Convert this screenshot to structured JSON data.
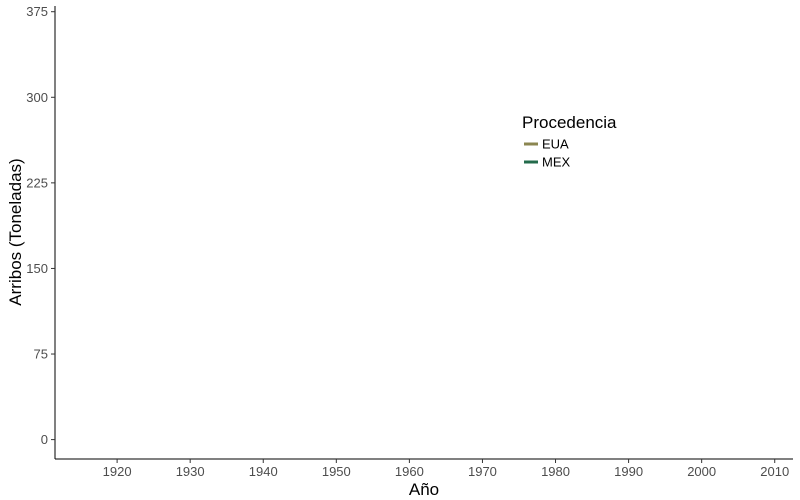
{
  "chart_data": {
    "type": "line",
    "title": "",
    "xlabel": "Año",
    "ylabel": "Arribos (Toneladas)",
    "x_ticks": [
      1920,
      1930,
      1940,
      1950,
      1960,
      1970,
      1980,
      1990,
      2000,
      2010
    ],
    "y_ticks": [
      0,
      75,
      150,
      225,
      300,
      375
    ],
    "xlim": [
      1911.5,
      2012.5
    ],
    "ylim": [
      -17,
      380
    ],
    "grid": false,
    "legend": {
      "title": "Procedencia",
      "placement": "inside-upper-right"
    },
    "series": [
      {
        "name": "EUA",
        "color": "#8b8650",
        "x": [],
        "y": []
      },
      {
        "name": "MEX",
        "color": "#236b4b",
        "x": [],
        "y": []
      }
    ]
  }
}
